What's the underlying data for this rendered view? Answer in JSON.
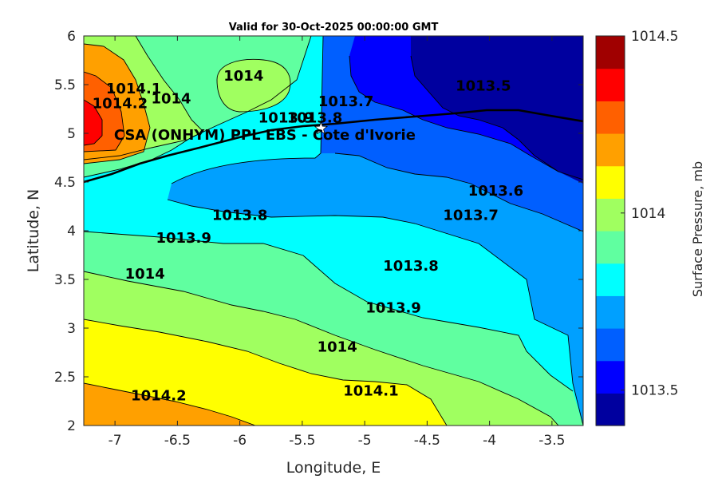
{
  "chart_data": {
    "type": "contour",
    "title": "Valid for 30-Oct-2025 00:00:00 GMT",
    "xlabel": "Longitude, E",
    "ylabel": "Latitude, N",
    "xlim": [
      -7.25,
      -3.25
    ],
    "ylim": [
      2,
      6
    ],
    "xticks": [
      "-7",
      "-6.5",
      "-6",
      "-5.5",
      "-5",
      "-4.5",
      "-4",
      "-3.5"
    ],
    "yticks": [
      "2",
      "2.5",
      "3",
      "3.5",
      "4",
      "4.5",
      "5",
      "5.5",
      "6"
    ],
    "colorbar": {
      "label": "Surface Pressure, mb",
      "range": [
        1013.4,
        1014.5
      ],
      "ticks": [
        "1013.5",
        "1014",
        "1014.5"
      ],
      "colors": [
        "#00009f",
        "#0000ff",
        "#005fff",
        "#00a0ff",
        "#00ffff",
        "#60ffa0",
        "#a0ff60",
        "#ffff00",
        "#ffa000",
        "#ff6000",
        "#ff0000",
        "#a00000"
      ]
    },
    "contour_labels": [
      {
        "text": "1014.2",
        "lon": -6.65,
        "lat": 2.3
      },
      {
        "text": "1014.1",
        "lon": -4.95,
        "lat": 2.35
      },
      {
        "text": "1014",
        "lon": -5.22,
        "lat": 2.8
      },
      {
        "text": "1013.9",
        "lon": -4.77,
        "lat": 3.2
      },
      {
        "text": "1013.8",
        "lon": -4.63,
        "lat": 3.63
      },
      {
        "text": "1014",
        "lon": -6.76,
        "lat": 3.55
      },
      {
        "text": "1013.9",
        "lon": -6.45,
        "lat": 3.92
      },
      {
        "text": "1013.8",
        "lon": -6.0,
        "lat": 4.15
      },
      {
        "text": "1013.7",
        "lon": -4.15,
        "lat": 4.15
      },
      {
        "text": "1013.6",
        "lon": -3.95,
        "lat": 4.4
      },
      {
        "text": "1013.5",
        "lon": -4.05,
        "lat": 5.48
      },
      {
        "text": "1014",
        "lon": -5.97,
        "lat": 5.58
      },
      {
        "text": "1014",
        "lon": -6.55,
        "lat": 5.35
      },
      {
        "text": "1014.1",
        "lon": -6.85,
        "lat": 5.45
      },
      {
        "text": "1014.2",
        "lon": -6.96,
        "lat": 5.3
      },
      {
        "text": "1013.9",
        "lon": -5.63,
        "lat": 5.15
      },
      {
        "text": "1013.8",
        "lon": -5.4,
        "lat": 5.15
      },
      {
        "text": "1013.7",
        "lon": -5.15,
        "lat": 5.32
      }
    ],
    "site": {
      "name": "CSA (ONHYM) PPL EBS  - Cote d'Ivorie",
      "lon": -5.35,
      "lat": 5.05
    }
  }
}
